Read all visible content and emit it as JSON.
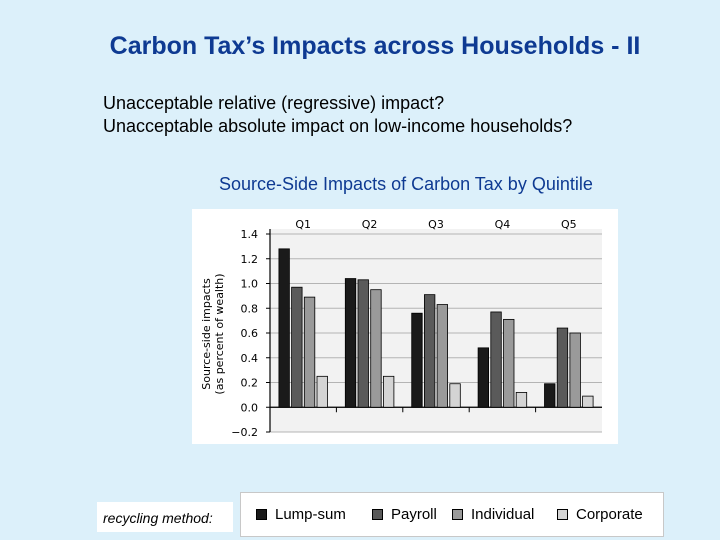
{
  "slide": {
    "title": "Carbon Tax’s Impacts across Households - II",
    "bullets": [
      "Unacceptable relative (regressive) impact?",
      "Unacceptable absolute impact on low-income households?"
    ],
    "chart_caption": "Source-Side Impacts of Carbon Tax by Quintile",
    "recycling_label": "recycling method:"
  },
  "chart_data": {
    "type": "bar",
    "categories": [
      "Q1",
      "Q2",
      "Q3",
      "Q4",
      "Q5"
    ],
    "ylabel": "Source-side impacts (as percent of wealth)",
    "ylabel_lines": [
      "Source-side impacts",
      "(as percent of wealth)"
    ],
    "ylim": [
      -0.2,
      1.4
    ],
    "yticks": [
      "1.4",
      "1.2",
      "1.0",
      "0.8",
      "0.6",
      "0.4",
      "0.2",
      "0.0",
      "−0.2"
    ],
    "ytick_values": [
      1.4,
      1.2,
      1.0,
      0.8,
      0.6,
      0.4,
      0.2,
      0.0,
      -0.2
    ],
    "grid": true,
    "legend_position": "bottom",
    "series": [
      {
        "name": "Lump-sum",
        "color": "#1a1a1a",
        "values": [
          1.28,
          1.04,
          0.76,
          0.48,
          0.19
        ]
      },
      {
        "name": "Payroll",
        "color": "#5a5a5a",
        "values": [
          0.97,
          1.03,
          0.91,
          0.77,
          0.64
        ]
      },
      {
        "name": "Individual",
        "color": "#9a9a9a",
        "values": [
          0.89,
          0.95,
          0.83,
          0.71,
          0.6
        ]
      },
      {
        "name": "Corporate",
        "color": "#d4d4d4",
        "values": [
          0.25,
          0.25,
          0.19,
          0.12,
          0.09
        ]
      }
    ]
  }
}
